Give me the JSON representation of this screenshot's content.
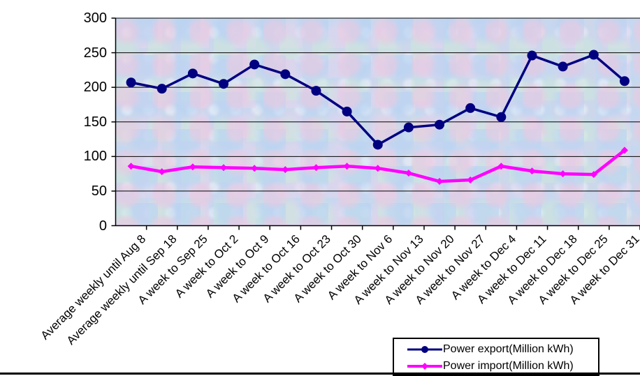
{
  "chart_data": {
    "type": "line",
    "title": "",
    "xlabel": "",
    "ylabel": "",
    "ylim": [
      0,
      300
    ],
    "yticks": [
      0,
      50,
      100,
      150,
      200,
      250,
      300
    ],
    "grid": "horizontal",
    "legend_position": "bottom-right",
    "plot_background": "mottled pastel blue-pink texture",
    "categories": [
      "Average weekly until Aug 8",
      "Average weekly until Sep 18",
      "A week to Sep 25",
      "A week to Oct 2",
      "A week to Oct 9",
      "A week to Oct 16",
      "A week to Oct 23",
      "A week to Oct 30",
      "A week to Nov 6",
      "A week to Nov 13",
      "A week to Nov 20",
      "A week to Nov 27",
      "A week to Dec 4",
      "A week to Dec 11",
      "A week to Dec 18",
      "A week to Dec 25",
      "A week to Dec 31"
    ],
    "series": [
      {
        "name": "Power export(Million kWh)",
        "color": "#000080",
        "marker": "circle",
        "values": [
          207,
          198,
          220,
          205,
          233,
          219,
          195,
          165,
          117,
          142,
          146,
          170,
          157,
          246,
          230,
          247,
          209
        ]
      },
      {
        "name": "Power import(Million kWh)",
        "color": "#FF00FF",
        "marker": "diamond",
        "values": [
          86,
          78,
          85,
          84,
          83,
          81,
          84,
          86,
          83,
          76,
          64,
          66,
          86,
          79,
          75,
          74,
          109
        ]
      }
    ]
  },
  "colors": {
    "grid": "#000000",
    "axis": "#000000",
    "plot_bg_base": "#ccd7eb",
    "export": "#000080",
    "import": "#FF00FF"
  }
}
